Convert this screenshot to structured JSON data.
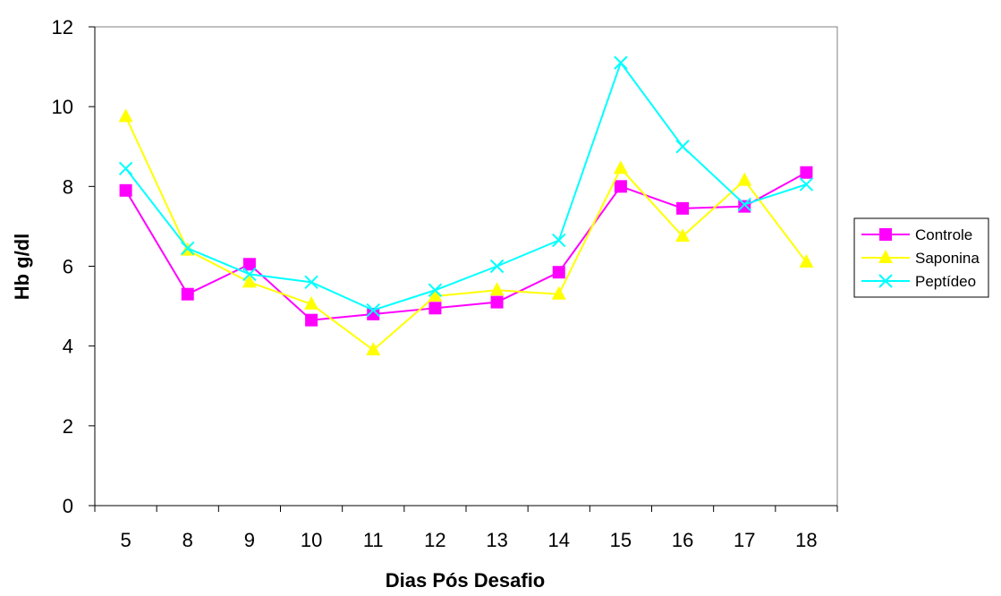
{
  "chart_data": {
    "type": "line",
    "xlabel": "Dias Pós Desafio",
    "ylabel": "Hb g/dl",
    "categories": [
      "5",
      "8",
      "9",
      "10",
      "11",
      "12",
      "13",
      "14",
      "15",
      "16",
      "17",
      "18"
    ],
    "ylim": [
      0,
      12
    ],
    "yticks": [
      0,
      2,
      4,
      6,
      8,
      10,
      12
    ],
    "grid": false,
    "legend_position": "right",
    "series": [
      {
        "name": "Controle",
        "color": "#ff00ff",
        "marker": "square",
        "values": [
          7.9,
          5.3,
          6.05,
          4.65,
          4.8,
          4.95,
          5.1,
          5.85,
          8.0,
          7.45,
          7.5,
          8.35
        ]
      },
      {
        "name": "Saponina",
        "color": "#ffff00",
        "marker": "triangle",
        "values": [
          9.75,
          6.4,
          5.6,
          5.05,
          3.9,
          5.25,
          5.4,
          5.3,
          8.45,
          6.75,
          8.15,
          6.1
        ]
      },
      {
        "name": "Peptídeo",
        "color": "#00ffff",
        "marker": "x",
        "values": [
          8.45,
          6.45,
          5.8,
          5.6,
          4.9,
          5.4,
          6.0,
          6.65,
          11.1,
          9.0,
          7.55,
          8.05
        ]
      }
    ]
  }
}
